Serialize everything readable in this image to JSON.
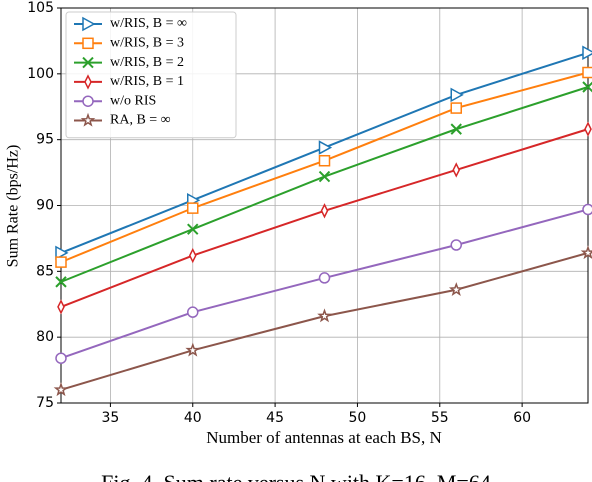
{
  "chart_data": {
    "type": "line",
    "x_label": "Number of antennas at each BS, N",
    "y_label": "Sum Rate (bps/Hz)",
    "caption": "Fig. 4. Sum rate versus N with K=16, M=64",
    "x": [
      32,
      40,
      48,
      56,
      64
    ],
    "series": [
      {
        "name": "w/RIS, B = ∞",
        "color": "#1f77b4",
        "marker": "triangle-right",
        "values": [
          86.4,
          90.4,
          94.4,
          98.4,
          101.6
        ]
      },
      {
        "name": "w/RIS, B = 3",
        "color": "#ff7f0e",
        "marker": "square",
        "values": [
          85.7,
          89.8,
          93.4,
          97.4,
          100.1
        ]
      },
      {
        "name": "w/RIS, B = 2",
        "color": "#2ca02c",
        "marker": "x",
        "values": [
          84.2,
          88.2,
          92.2,
          95.8,
          99.0
        ]
      },
      {
        "name": "w/RIS, B = 1",
        "color": "#d62728",
        "marker": "thin-diamond",
        "values": [
          82.3,
          86.2,
          89.6,
          92.7,
          95.8
        ]
      },
      {
        "name": "w/o RIS",
        "color": "#9467bd",
        "marker": "circle",
        "values": [
          78.4,
          81.9,
          84.5,
          87.0,
          89.7
        ]
      },
      {
        "name": "RA, B = ∞",
        "color": "#8c564b",
        "marker": "star",
        "values": [
          76.0,
          79.0,
          81.6,
          83.6,
          86.4
        ]
      }
    ],
    "xlim": [
      32,
      64
    ],
    "xticks": [
      35,
      40,
      45,
      50,
      55,
      60
    ],
    "ylim": [
      75,
      105
    ],
    "yticks": [
      75,
      80,
      85,
      90,
      95,
      100,
      105
    ],
    "grid": true,
    "legend": "upper left"
  }
}
